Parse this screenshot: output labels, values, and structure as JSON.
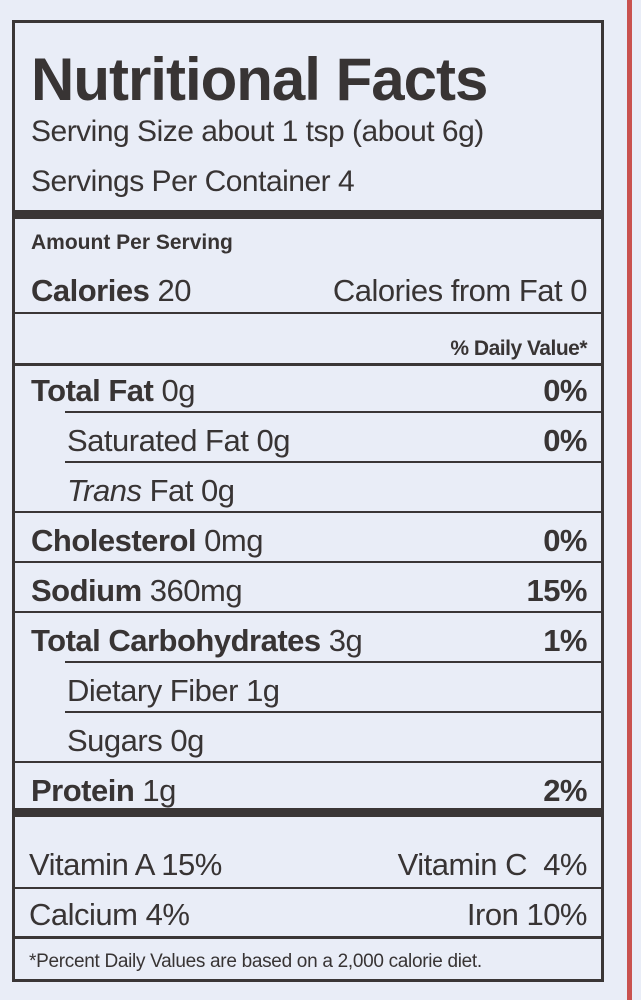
{
  "title": "Nutritional Facts",
  "serving_size": "Serving Size about 1 tsp (about 6g)",
  "servings_per_container": "Servings Per Container 4",
  "amount_per_serving": "Amount Per Serving",
  "calories": {
    "label": "Calories",
    "value": "20",
    "from_fat": "Calories from Fat 0"
  },
  "daily_value_header": "% Daily Value*",
  "nutrients": [
    {
      "label": "Total Fat",
      "amount": "0g",
      "dv": "0%"
    },
    {
      "label": "Saturated Fat",
      "amount": "0g",
      "dv": "0%"
    },
    {
      "label": "Trans",
      "label2": "Fat",
      "amount": "0g",
      "dv": ""
    },
    {
      "label": "Cholesterol",
      "amount": "0mg",
      "dv": "0%"
    },
    {
      "label": "Sodium",
      "amount": "360mg",
      "dv": "15%"
    },
    {
      "label": "Total Carbohydrates",
      "amount": "3g",
      "dv": "1%"
    },
    {
      "label": "Dietary Fiber",
      "amount": "1g",
      "dv": ""
    },
    {
      "label": "Sugars",
      "amount": "0g",
      "dv": ""
    },
    {
      "label": "Protein",
      "amount": "1g",
      "dv": "2%"
    }
  ],
  "vitamins": [
    {
      "left": "Vitamin A 15%",
      "right": "Vitamin C  4%"
    },
    {
      "left": "Calcium 4%",
      "right": "Iron 10%"
    }
  ],
  "footnote": "*Percent Daily Values are based on a 2,000 calorie diet.",
  "colors": {
    "background": "#e9edf7",
    "text": "#383434",
    "edge_stripe": "#c9524f"
  }
}
